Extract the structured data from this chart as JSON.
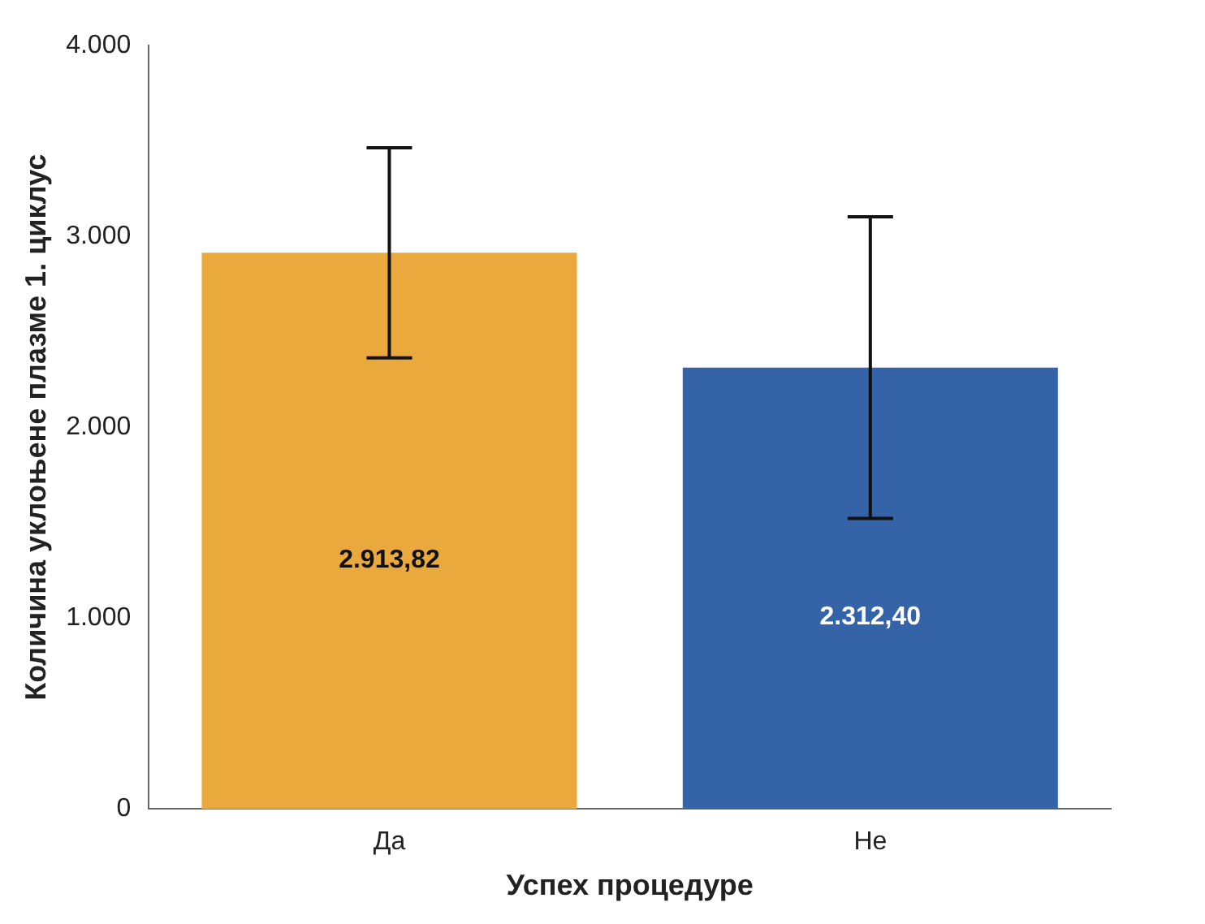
{
  "chart_data": {
    "type": "bar",
    "xlabel": "Успех процедуре",
    "ylabel": "Количина уклоњене плазме 1. циклус",
    "categories": [
      "Да",
      "Не"
    ],
    "values": [
      2913.82,
      2312.4
    ],
    "colors": [
      "#e9a93c",
      "#3563a8"
    ],
    "errors": [
      550,
      790
    ],
    "value_labels": [
      "2.913,82",
      "2.312,40"
    ],
    "ylim": [
      0,
      4000
    ],
    "yticks": [
      {
        "value": 0,
        "label": "0"
      },
      {
        "value": 1000,
        "label": "1.000"
      },
      {
        "value": 2000,
        "label": "2.000"
      },
      {
        "value": 3000,
        "label": "3.000"
      },
      {
        "value": 4000,
        "label": "4.000"
      }
    ],
    "grid": false,
    "legend": false
  }
}
